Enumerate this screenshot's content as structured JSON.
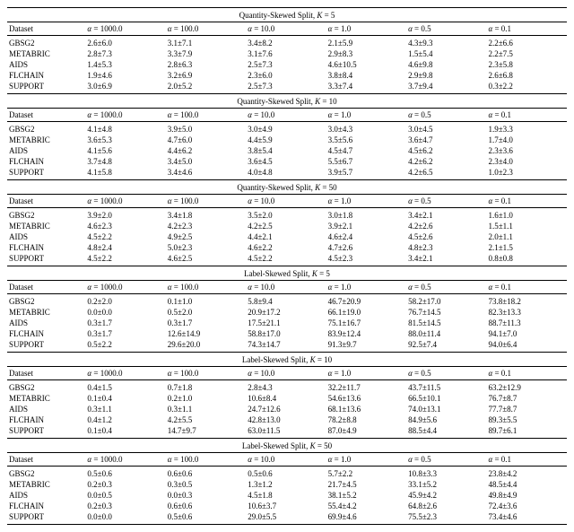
{
  "font_family": "Times New Roman",
  "font_size_pt": 9,
  "background_color": "#ffffff",
  "text_color": "#000000",
  "rule_color": "#000000",
  "datasets": [
    "GBSG2",
    "METABRIC",
    "AIDS",
    "FLCHAIN",
    "SUPPORT"
  ],
  "alpha_cols": [
    "1000.0",
    "100.0",
    "10.0",
    "1.0",
    "0.5",
    "0.1"
  ],
  "sections": [
    {
      "title_prefix": "Quantity-Skewed Split, ",
      "K": 5,
      "rows": [
        [
          "2.6±6.0",
          "3.1±7.1",
          "3.4±8.2",
          "2.1±5.9",
          "4.3±9.3",
          "2.2±6.6"
        ],
        [
          "2.8±7.3",
          "3.3±7.9",
          "3.1±7.6",
          "2.9±8.3",
          "1.5±5.4",
          "2.2±7.5"
        ],
        [
          "1.4±5.3",
          "2.8±6.3",
          "2.5±7.3",
          "4.6±10.5",
          "4.6±9.8",
          "2.3±5.8"
        ],
        [
          "1.9±4.6",
          "3.2±6.9",
          "2.3±6.0",
          "3.8±8.4",
          "2.9±9.8",
          "2.6±6.8"
        ],
        [
          "3.0±6.9",
          "2.0±5.2",
          "2.5±7.3",
          "3.3±7.4",
          "3.7±9.4",
          "0.3±2.2"
        ]
      ]
    },
    {
      "title_prefix": "Quantity-Skewed Split, ",
      "K": 10,
      "rows": [
        [
          "4.1±4.8",
          "3.9±5.0",
          "3.0±4.9",
          "3.0±4.3",
          "3.0±4.5",
          "1.9±3.3"
        ],
        [
          "3.6±5.3",
          "4.7±6.0",
          "4.4±5.9",
          "3.5±5.6",
          "3.6±4.7",
          "1.7±4.0"
        ],
        [
          "4.1±5.6",
          "4.4±6.2",
          "3.8±5.4",
          "4.5±4.7",
          "4.5±6.2",
          "2.3±3.6"
        ],
        [
          "3.7±4.8",
          "3.4±5.0",
          "3.6±4.5",
          "5.5±6.7",
          "4.2±6.2",
          "2.3±4.0"
        ],
        [
          "4.1±5.8",
          "3.4±4.6",
          "4.0±4.8",
          "3.9±5.7",
          "4.2±6.5",
          "1.0±2.3"
        ]
      ]
    },
    {
      "title_prefix": "Quantity-Skewed Split, ",
      "K": 50,
      "rows": [
        [
          "3.9±2.0",
          "3.4±1.8",
          "3.5±2.0",
          "3.0±1.8",
          "3.4±2.1",
          "1.6±1.0"
        ],
        [
          "4.6±2.3",
          "4.2±2.3",
          "4.2±2.5",
          "3.9±2.1",
          "4.2±2.6",
          "1.5±1.1"
        ],
        [
          "4.5±2.2",
          "4.9±2.5",
          "4.4±2.1",
          "4.6±2.4",
          "4.5±2.6",
          "2.0±1.1"
        ],
        [
          "4.8±2.4",
          "5.0±2.3",
          "4.6±2.2",
          "4.7±2.6",
          "4.8±2.3",
          "2.1±1.5"
        ],
        [
          "4.5±2.2",
          "4.6±2.5",
          "4.5±2.2",
          "4.5±2.3",
          "3.4±2.1",
          "0.8±0.8"
        ]
      ]
    },
    {
      "title_prefix": "Label-Skewed Split, ",
      "K": 5,
      "rows": [
        [
          "0.2±2.0",
          "0.1±1.0",
          "5.8±9.4",
          "46.7±20.9",
          "58.2±17.0",
          "73.8±18.2"
        ],
        [
          "0.0±0.0",
          "0.5±2.0",
          "20.9±17.2",
          "66.1±19.0",
          "76.7±14.5",
          "82.3±13.3"
        ],
        [
          "0.3±1.7",
          "0.3±1.7",
          "17.5±21.1",
          "75.1±16.7",
          "81.5±14.5",
          "88.7±11.3"
        ],
        [
          "0.3±1.7",
          "12.6±14.9",
          "58.8±17.0",
          "83.9±12.4",
          "88.0±11.4",
          "94.1±7.0"
        ],
        [
          "0.5±2.2",
          "29.6±20.0",
          "74.3±14.7",
          "91.3±9.7",
          "92.5±7.4",
          "94.0±6.4"
        ]
      ]
    },
    {
      "title_prefix": "Label-Skewed Split, ",
      "K": 10,
      "rows": [
        [
          "0.4±1.5",
          "0.7±1.8",
          "2.8±4.3",
          "32.2±11.7",
          "43.7±11.5",
          "63.2±12.9"
        ],
        [
          "0.1±0.4",
          "0.2±1.0",
          "10.6±8.4",
          "54.6±13.6",
          "66.5±10.1",
          "76.7±8.7"
        ],
        [
          "0.3±1.1",
          "0.3±1.1",
          "24.7±12.6",
          "68.1±13.6",
          "74.0±13.1",
          "77.7±8.7"
        ],
        [
          "0.4±1.2",
          "4.2±5.5",
          "42.8±13.0",
          "78.2±8.8",
          "84.9±5.6",
          "89.3±5.5"
        ],
        [
          "0.1±0.4",
          "14.7±9.7",
          "63.0±11.5",
          "87.0±4.9",
          "88.5±4.4",
          "89.7±6.1"
        ]
      ]
    },
    {
      "title_prefix": "Label-Skewed Split, ",
      "K": 50,
      "rows": [
        [
          "0.5±0.6",
          "0.6±0.6",
          "0.5±0.6",
          "5.7±2.2",
          "10.8±3.3",
          "23.8±4.2"
        ],
        [
          "0.2±0.3",
          "0.3±0.5",
          "1.3±1.2",
          "21.7±4.5",
          "33.1±5.2",
          "48.5±4.4"
        ],
        [
          "0.0±0.5",
          "0.0±0.3",
          "4.5±1.8",
          "38.1±5.2",
          "45.9±4.2",
          "49.8±4.9"
        ],
        [
          "0.2±0.3",
          "0.6±0.6",
          "10.6±3.7",
          "55.4±4.2",
          "64.8±2.6",
          "72.4±3.6"
        ],
        [
          "0.0±0.0",
          "0.5±0.6",
          "29.0±5.5",
          "69.9±4.6",
          "75.5±2.3",
          "73.4±4.6"
        ]
      ]
    }
  ]
}
